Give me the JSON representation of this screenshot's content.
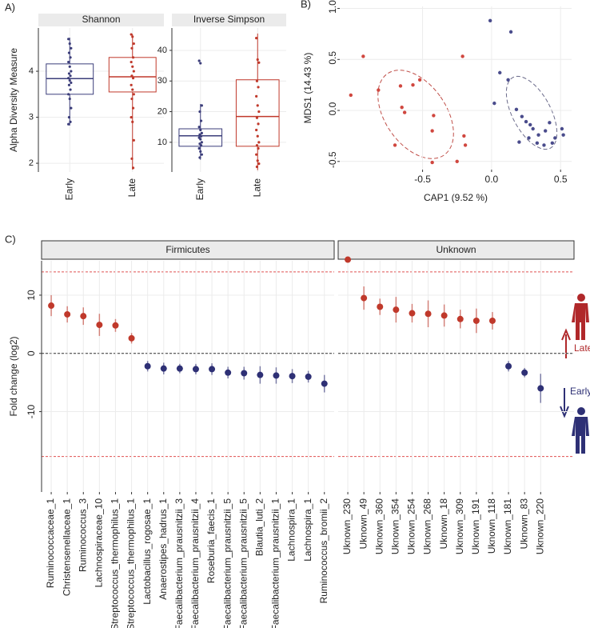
{
  "chart_data": [
    {
      "type": "box",
      "panel": "A)",
      "title": "Shannon",
      "y_label": "Alpha Diversity Measure",
      "categories": [
        "Early",
        "Late"
      ],
      "colors": [
        "#3b3d7a",
        "#c0392b"
      ],
      "boxes": [
        {
          "low": 2.82,
          "q1": 3.5,
          "median": 3.84,
          "q3": 4.16,
          "high": 4.73
        },
        {
          "low": 1.86,
          "q1": 3.55,
          "median": 3.88,
          "q3": 4.3,
          "high": 4.8
        }
      ],
      "points": [
        [
          4.7,
          4.6,
          4.5,
          4.4,
          4.3,
          4.2,
          4.1,
          4.0,
          3.95,
          3.9,
          3.85,
          3.8,
          3.75,
          3.7,
          3.6,
          3.5,
          3.4,
          3.2,
          3.0,
          2.9,
          2.85
        ],
        [
          4.8,
          4.75,
          4.6,
          4.5,
          4.3,
          4.2,
          4.1,
          4.0,
          3.9,
          3.85,
          3.7,
          3.6,
          3.5,
          3.4,
          3.2,
          3.0,
          2.9,
          2.5,
          2.1,
          1.9
        ]
      ],
      "ylim": [
        1.81,
        4.94
      ],
      "yticks": [
        2,
        3,
        4
      ],
      "grid": true
    },
    {
      "type": "box",
      "title": "Inverse Simpson",
      "categories": [
        "Early",
        "Late"
      ],
      "colors": [
        "#3b3d7a",
        "#c0392b"
      ],
      "boxes": [
        {
          "low": 4.3,
          "q1": 8.7,
          "median": 12.1,
          "q3": 14.4,
          "high": 22.5
        },
        {
          "low": 0.9,
          "q1": 8.7,
          "median": 18.4,
          "q3": 30.4,
          "high": 45.5
        }
      ],
      "points": [
        [
          36.6,
          35.8,
          22,
          20,
          17,
          15,
          14,
          13,
          12.5,
          12,
          11.5,
          11,
          10,
          9.5,
          9,
          8,
          7,
          6,
          5
        ],
        [
          44,
          37,
          36,
          30,
          28,
          25,
          22,
          20,
          18,
          16,
          14,
          12,
          10,
          9,
          8,
          6,
          4,
          3,
          2
        ]
      ],
      "ylim": [
        0.3,
        47.3
      ],
      "yticks": [
        10,
        20,
        30,
        40
      ],
      "grid": true
    },
    {
      "type": "scatter",
      "panel": "B)",
      "x_label": "CAP1 (9.52 %)",
      "y_label": "MDS1 (14.43 %)",
      "series": [
        {
          "color": "#d0473f",
          "x": [
            -1.02,
            -0.93,
            -0.82,
            -0.66,
            -0.52,
            -0.65,
            -0.63,
            -0.57,
            -0.42,
            -0.43,
            -0.21,
            -0.2,
            -0.19,
            -0.7,
            -0.43,
            -0.25
          ],
          "y": [
            0.15,
            0.53,
            0.2,
            0.24,
            0.3,
            0.03,
            -0.02,
            0.25,
            -0.05,
            -0.2,
            0.53,
            -0.25,
            -0.34,
            -0.34,
            -0.51,
            -0.5
          ]
        },
        {
          "color": "#4a4c8c",
          "x": [
            -0.01,
            0.14,
            0.06,
            0.12,
            0.02,
            0.18,
            0.22,
            0.25,
            0.28,
            0.3,
            0.34,
            0.39,
            0.42,
            0.46,
            0.51,
            0.52,
            0.44,
            0.33,
            0.27,
            0.2,
            0.38
          ],
          "y": [
            0.88,
            0.77,
            0.37,
            0.3,
            0.07,
            0.01,
            -0.06,
            -0.11,
            -0.14,
            -0.18,
            -0.24,
            -0.2,
            -0.12,
            -0.27,
            -0.18,
            -0.24,
            -0.32,
            -0.32,
            -0.27,
            -0.31,
            -0.34
          ]
        }
      ],
      "xlim": [
        -1.1,
        0.58
      ],
      "xticks": [
        {
          "value": -0.5,
          "label": "-0.5"
        },
        {
          "value": 0,
          "label": "0.0"
        },
        {
          "value": 0.5,
          "label": "0.5"
        }
      ],
      "ylim": [
        -0.58,
        1.02
      ],
      "yticks": [
        {
          "value": -0.5,
          "label": "-0.5"
        },
        {
          "value": 0,
          "label": "0.0"
        },
        {
          "value": 0.5,
          "label": "0.5"
        },
        {
          "value": 1,
          "label": "1.0"
        }
      ],
      "grid": true
    },
    {
      "type": "dotplot",
      "panel": "C)",
      "y_label": "Fold change (log2)",
      "up_color": "#c0392b",
      "down_color": "#2e3075",
      "ylim": [
        -23.8,
        15.9
      ],
      "yticks": [
        -10,
        0,
        10
      ],
      "grid": true,
      "ref_lines": [
        {
          "value": 14,
          "color": "#e05050"
        },
        {
          "value": -17.7,
          "color": "#e05050"
        },
        {
          "value": 0,
          "color": "#333333"
        }
      ],
      "annotations": [
        "Late",
        "Early"
      ],
      "facets": [
        {
          "title": "Firmicutes",
          "categories": [
            "Ruminococcaceae_1",
            "Christensenellaceae_1",
            "Ruminococcus_3",
            "Lachnospiraceae_10",
            "Streptococcus_thermophilus_1",
            "Streptococcus_thermophilus_1",
            "Lactobacillus_rogosae_1",
            "Anaerostipes_hadrus_1",
            "Faecalibacterium_prausnitzii_3",
            "Faecalibacterium_prausnitzii_4",
            "Roseburia_faecis_1",
            "Faecalibacterium_prausnitzii_5",
            "Faecalibacterium_prausnitzii_5",
            "Blautia_luti_2",
            "Faecalibacterium_prausnitzii_1",
            "Lachnospira_1",
            "Lachnospira_1",
            "Ruminococcus_bromii_2"
          ],
          "values": [
            8.2,
            6.7,
            6.4,
            4.9,
            4.8,
            2.6,
            -2.2,
            -2.6,
            -2.6,
            -2.7,
            -2.7,
            -3.3,
            -3.4,
            -3.7,
            -3.8,
            -3.9,
            -4.0,
            -5.2
          ],
          "errors": [
            1.8,
            1.4,
            1.5,
            1.9,
            1.1,
            0.9,
            0.9,
            1.0,
            0.8,
            0.9,
            1.0,
            1.0,
            1.1,
            1.5,
            1.4,
            1.2,
            1.0,
            1.5
          ]
        },
        {
          "title": "Unknown",
          "categories": [
            "Uknown_230",
            "Uknown_49",
            "Uknown_360",
            "Uknown_354",
            "Uknown_254",
            "Uknown_268",
            "Uknown_18",
            "Uknown_309",
            "Uknown_191",
            "Uknown_118",
            "Uknown_181",
            "Uknown_83",
            "Uknown_220"
          ],
          "values": [
            16.1,
            9.5,
            8.0,
            7.5,
            6.9,
            6.8,
            6.5,
            5.9,
            5.6,
            5.6,
            -2.2,
            -3.3,
            -6.0
          ],
          "errors": [
            0,
            2.0,
            1.4,
            2.2,
            1.6,
            2.3,
            1.9,
            1.6,
            2.1,
            1.5,
            0.9,
            0.8,
            2.5
          ]
        }
      ]
    }
  ]
}
